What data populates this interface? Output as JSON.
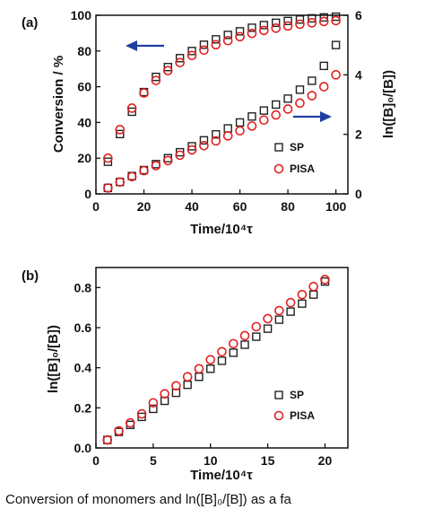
{
  "chart_data": [
    {
      "panel": "(a)",
      "type": "scatter",
      "xlabel": "Time/10⁴τ",
      "ylabel": "Conversion / %",
      "y2label": "ln([B]₀/[B])",
      "xlim": [
        0,
        105
      ],
      "ylim": [
        0,
        100
      ],
      "y2lim": [
        0,
        6
      ],
      "xticks": [
        0,
        20,
        40,
        60,
        80,
        100
      ],
      "yticks": [
        0,
        20,
        40,
        60,
        80,
        100
      ],
      "y2ticks": [
        0,
        2,
        4,
        6
      ],
      "legend": {
        "position": "right",
        "entries": [
          "SP",
          "PISA"
        ]
      },
      "x": [
        5,
        10,
        15,
        20,
        25,
        30,
        35,
        40,
        45,
        50,
        55,
        60,
        65,
        70,
        75,
        80,
        85,
        90,
        95,
        100
      ],
      "series": [
        {
          "name": "SP",
          "marker": "square",
          "color": "#222222",
          "axis": "left",
          "values": [
            18,
            33.5,
            46,
            57,
            65.5,
            71,
            76,
            80,
            83.5,
            86.5,
            89,
            91,
            93,
            94.5,
            95.8,
            96.8,
            97.6,
            98.3,
            98.8,
            99.2
          ]
        },
        {
          "name": "PISA",
          "marker": "circle",
          "color": "#e02020",
          "axis": "left",
          "values": [
            20,
            36,
            48,
            56.5,
            63.5,
            69,
            73.5,
            77.5,
            80.5,
            83.5,
            85.8,
            88,
            89.8,
            91.5,
            92.8,
            94,
            95,
            95.8,
            96.5,
            97
          ]
        },
        {
          "name": "SP",
          "marker": "square",
          "color": "#222222",
          "axis": "right",
          "values": [
            0.2,
            0.4,
            0.6,
            0.8,
            1.0,
            1.2,
            1.4,
            1.6,
            1.8,
            2.0,
            2.2,
            2.4,
            2.6,
            2.8,
            3.0,
            3.2,
            3.5,
            3.8,
            4.3,
            5.0
          ]
        },
        {
          "name": "PISA",
          "marker": "circle",
          "color": "#e02020",
          "axis": "right",
          "values": [
            0.2,
            0.4,
            0.58,
            0.78,
            0.95,
            1.12,
            1.3,
            1.48,
            1.62,
            1.78,
            1.95,
            2.12,
            2.28,
            2.48,
            2.65,
            2.85,
            3.05,
            3.3,
            3.6,
            4.0
          ]
        }
      ],
      "annotations": [
        {
          "type": "arrow",
          "direction": "left",
          "color": "#1f3ea0"
        },
        {
          "type": "arrow",
          "direction": "right",
          "color": "#1f3ea0"
        }
      ]
    },
    {
      "panel": "(b)",
      "type": "scatter",
      "xlabel": "Time/10⁴τ",
      "ylabel": "ln([B]₀/[B])",
      "xlim": [
        0,
        22
      ],
      "ylim": [
        0,
        0.9
      ],
      "xticks": [
        0,
        5,
        10,
        15,
        20
      ],
      "yticks": [
        0.0,
        0.2,
        0.4,
        0.6,
        0.8
      ],
      "yticklabels": [
        "0.0",
        "0.2",
        "0.4",
        "0.6",
        "0.8"
      ],
      "legend": {
        "position": "bottom-right",
        "entries": [
          "SP",
          "PISA"
        ]
      },
      "x": [
        1,
        2,
        3,
        4,
        5,
        6,
        7,
        8,
        9,
        10,
        11,
        12,
        13,
        14,
        15,
        16,
        17,
        18,
        19,
        20
      ],
      "series": [
        {
          "name": "SP",
          "marker": "square",
          "color": "#222222",
          "values": [
            0.04,
            0.08,
            0.115,
            0.155,
            0.195,
            0.235,
            0.275,
            0.315,
            0.355,
            0.395,
            0.435,
            0.475,
            0.515,
            0.555,
            0.595,
            0.64,
            0.68,
            0.72,
            0.765,
            0.83
          ]
        },
        {
          "name": "PISA",
          "marker": "circle",
          "color": "#e02020",
          "values": [
            0.04,
            0.085,
            0.125,
            0.17,
            0.225,
            0.27,
            0.31,
            0.355,
            0.395,
            0.44,
            0.48,
            0.52,
            0.56,
            0.605,
            0.645,
            0.685,
            0.725,
            0.765,
            0.805,
            0.84
          ]
        }
      ]
    }
  ],
  "caption_fragment": "Conversion of monomers and ln([B]₀/[B]) as a fa"
}
